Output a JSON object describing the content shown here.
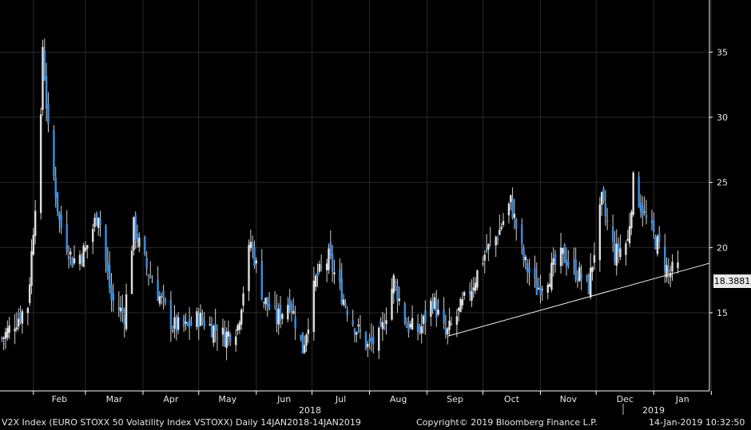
{
  "chart_data": {
    "type": "candlestick",
    "ylim": [
      9,
      39
    ],
    "yticks": [
      15,
      20,
      25,
      30,
      35
    ],
    "x_months": [
      "Feb",
      "Mar",
      "Apr",
      "May",
      "Jun",
      "Jul",
      "Aug",
      "Sep",
      "Oct",
      "Nov",
      "Dec",
      "Jan"
    ],
    "year_labels": [
      "2018",
      "2019"
    ],
    "last_value_label": "18.3881",
    "up_color": "#e0e0e0",
    "down_color": "#3d8ee0",
    "trendline": {
      "from": {
        "date": "2018-09-12",
        "value": 13.2
      },
      "to": {
        "date": "2019-01-31",
        "value": 18.8
      }
    },
    "close_series": [
      {
        "date": "2018-01-15",
        "close": 13.0
      },
      {
        "date": "2018-01-29",
        "close": 15.6
      },
      {
        "date": "2018-02-05",
        "close": 29.5
      },
      {
        "date": "2018-02-06",
        "close": 35.5
      },
      {
        "date": "2018-02-09",
        "close": 28.8
      },
      {
        "date": "2018-02-15",
        "close": 22.0
      },
      {
        "date": "2018-02-22",
        "close": 19.0
      },
      {
        "date": "2018-03-01",
        "close": 19.8
      },
      {
        "date": "2018-03-08",
        "close": 22.8
      },
      {
        "date": "2018-03-15",
        "close": 16.0
      },
      {
        "date": "2018-03-22",
        "close": 14.8
      },
      {
        "date": "2018-03-27",
        "close": 21.6
      },
      {
        "date": "2018-04-03",
        "close": 18.4
      },
      {
        "date": "2018-04-10",
        "close": 16.2
      },
      {
        "date": "2018-04-17",
        "close": 14.0
      },
      {
        "date": "2018-04-24",
        "close": 13.8
      },
      {
        "date": "2018-05-01",
        "close": 14.6
      },
      {
        "date": "2018-05-08",
        "close": 13.9
      },
      {
        "date": "2018-05-15",
        "close": 13.2
      },
      {
        "date": "2018-05-22",
        "close": 14.0
      },
      {
        "date": "2018-05-29",
        "close": 20.5
      },
      {
        "date": "2018-06-05",
        "close": 16.0
      },
      {
        "date": "2018-06-12",
        "close": 14.5
      },
      {
        "date": "2018-06-19",
        "close": 16.0
      },
      {
        "date": "2018-06-26",
        "close": 12.2
      },
      {
        "date": "2018-07-03",
        "close": 17.5
      },
      {
        "date": "2018-07-10",
        "close": 19.2
      },
      {
        "date": "2018-07-17",
        "close": 16.4
      },
      {
        "date": "2018-07-24",
        "close": 14.0
      },
      {
        "date": "2018-07-31",
        "close": 12.4
      },
      {
        "date": "2018-08-07",
        "close": 13.2
      },
      {
        "date": "2018-08-14",
        "close": 17.5
      },
      {
        "date": "2018-08-21",
        "close": 14.0
      },
      {
        "date": "2018-08-28",
        "close": 13.6
      },
      {
        "date": "2018-09-04",
        "close": 16.0
      },
      {
        "date": "2018-09-11",
        "close": 13.2
      },
      {
        "date": "2018-09-18",
        "close": 15.0
      },
      {
        "date": "2018-09-25",
        "close": 17.0
      },
      {
        "date": "2018-10-02",
        "close": 19.5
      },
      {
        "date": "2018-10-09",
        "close": 21.0
      },
      {
        "date": "2018-10-16",
        "close": 23.5
      },
      {
        "date": "2018-10-23",
        "close": 19.0
      },
      {
        "date": "2018-10-30",
        "close": 16.8
      },
      {
        "date": "2018-11-06",
        "close": 18.0
      },
      {
        "date": "2018-11-13",
        "close": 19.4
      },
      {
        "date": "2018-11-20",
        "close": 18.2
      },
      {
        "date": "2018-11-27",
        "close": 17.0
      },
      {
        "date": "2018-12-04",
        "close": 23.5
      },
      {
        "date": "2018-12-11",
        "close": 19.5
      },
      {
        "date": "2018-12-18",
        "close": 20.5
      },
      {
        "date": "2018-12-21",
        "close": 25.0
      },
      {
        "date": "2018-12-28",
        "close": 22.0
      },
      {
        "date": "2019-01-04",
        "close": 20.0
      },
      {
        "date": "2019-01-09",
        "close": 18.0
      },
      {
        "date": "2019-01-14",
        "close": 18.3881
      }
    ]
  },
  "footer": {
    "series_text": "V2X Index (EURO STOXX 50 Volatility Index VSTOXX)  Daily 14JAN2018-14JAN2019",
    "copyright": "Copyright© 2019 Bloomberg Finance L.P.",
    "timestamp": "14-Jan-2019 10:32:50"
  }
}
